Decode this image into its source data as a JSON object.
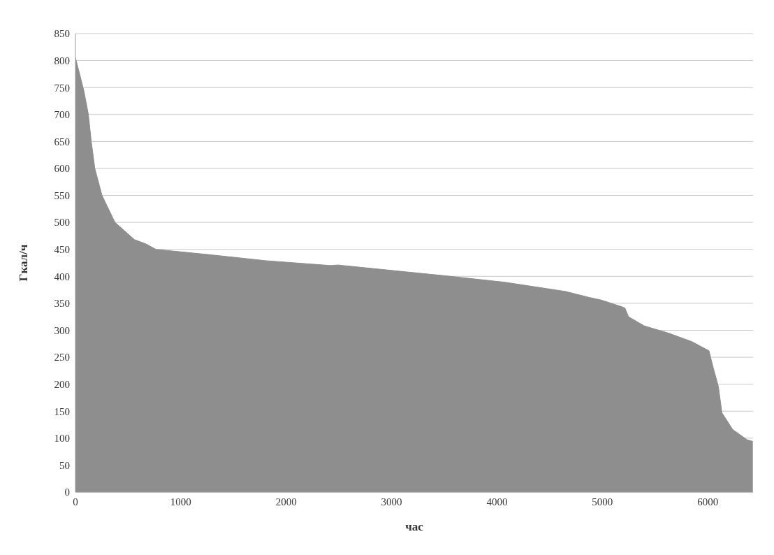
{
  "chart_data": {
    "type": "area",
    "xlabel": "час",
    "ylabel": "Гкал/ч",
    "color": "#8e8e8e",
    "x": [
      0,
      40,
      82,
      123,
      150,
      184,
      252,
      375,
      560,
      670,
      763,
      1280,
      1806,
      2420,
      2488,
      3510,
      4076,
      4650,
      4874,
      4990,
      5194,
      5215,
      5249,
      5399,
      5624,
      5849,
      6012,
      6053,
      6101,
      6135,
      6237,
      6374,
      6428
    ],
    "values": [
      805,
      775,
      742,
      700,
      650,
      600,
      550,
      500,
      468,
      460,
      450,
      440,
      429,
      420,
      421,
      401,
      389,
      372,
      361,
      356,
      343,
      341,
      325,
      308,
      295,
      279,
      262,
      230,
      196,
      147,
      116,
      97,
      94
    ],
    "xlim": [
      0,
      6430
    ],
    "xticks": [
      0,
      1000,
      2000,
      3000,
      4000,
      5000,
      6000
    ],
    "ylim": [
      0,
      850
    ],
    "yticks": [
      0,
      50,
      100,
      150,
      200,
      250,
      300,
      350,
      400,
      450,
      500,
      550,
      600,
      650,
      700,
      750,
      800,
      850
    ],
    "grid": "y",
    "marker": "none"
  }
}
